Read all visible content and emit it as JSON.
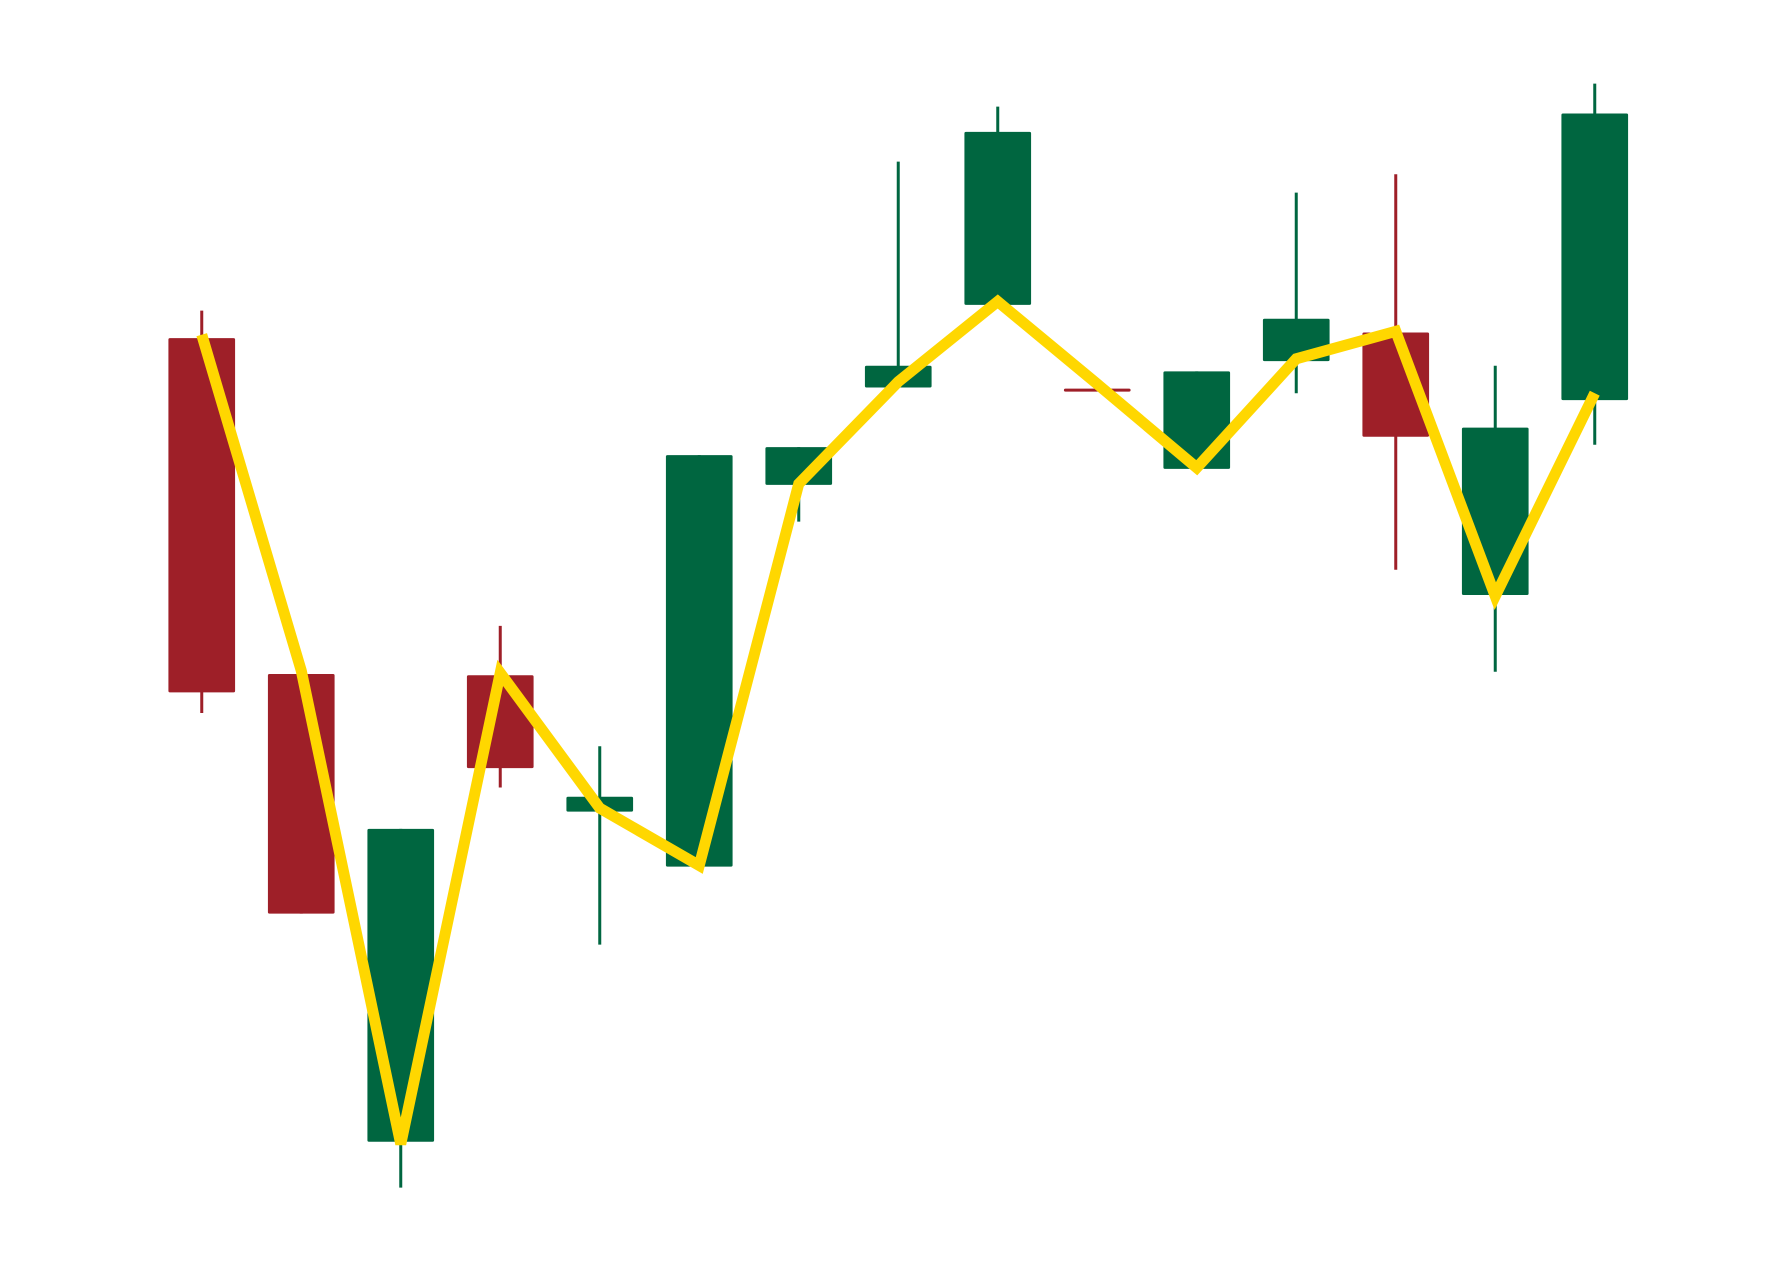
{
  "chart_data": {
    "type": "candlestick",
    "categories": [
      null,
      null,
      null,
      null,
      null,
      null,
      null,
      null,
      null,
      null,
      null,
      null,
      null,
      null,
      null
    ],
    "open": [
      80.5,
      51.2,
      10.4,
      51.1,
      39.2,
      34.4,
      67.7,
      76.2,
      83.4,
      76.1,
      69.1,
      78.5,
      81.0,
      58.1,
      75.1
    ],
    "high": [
      82.9,
      51.2,
      37.7,
      55.4,
      44.9,
      70.3,
      71.0,
      95.9,
      100.7,
      76.1,
      77.6,
      93.2,
      94.8,
      78.1,
      102.7
    ],
    "low": [
      47.8,
      30.3,
      6.4,
      41.3,
      27.6,
      34.4,
      64.5,
      76.2,
      83.4,
      75.9,
      69.1,
      75.7,
      60.3,
      51.4,
      71.2
    ],
    "close": [
      49.6,
      30.3,
      37.7,
      43.0,
      40.5,
      70.3,
      71.0,
      78.1,
      98.5,
      75.9,
      77.6,
      82.2,
      71.9,
      72.7,
      100.1
    ],
    "up_color": "#006640",
    "down_color": "#9e1f28",
    "line": {
      "color": "#ffd700",
      "values": [
        80.8,
        51.5,
        10.2,
        51.3,
        39.5,
        34.5,
        67.8,
        76.7,
        83.7,
        76.5,
        69.2,
        78.7,
        81.1,
        58.0,
        75.7
      ]
    },
    "ylim": [
      0,
      110
    ]
  }
}
